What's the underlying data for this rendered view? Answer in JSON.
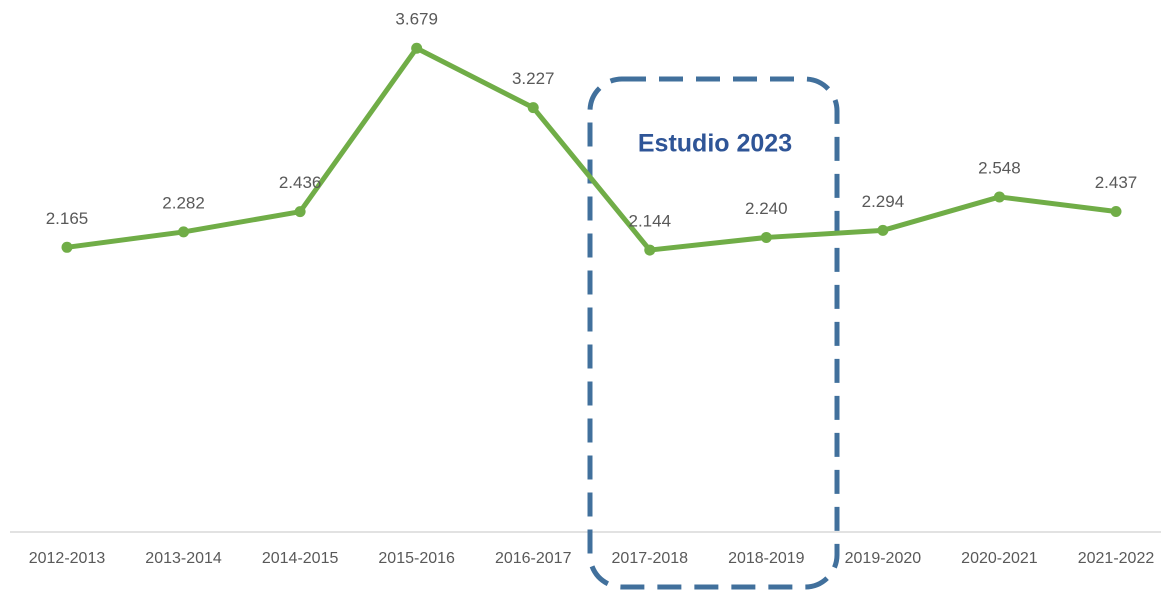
{
  "chart_data": {
    "type": "line",
    "annotation": "Estudio 2023",
    "categories": [
      "2012-2013",
      "2013-2014",
      "2014-2015",
      "2015-2016",
      "2016-2017",
      "2017-2018",
      "2018-2019",
      "2019-2020",
      "2020-2021",
      "2021-2022"
    ],
    "series": [
      {
        "color": "#70ad47",
        "values": [
          2.165,
          2.282,
          2.436,
          3.679,
          3.227,
          2.144,
          2.24,
          2.294,
          2.548,
          2.437
        ],
        "value_labels": [
          "2.165",
          "2.282",
          "2.436",
          "3.679",
          "3.227",
          "2.144",
          "2.240",
          "2.294",
          "2.548",
          "2.437"
        ]
      }
    ],
    "ylim": [
      0,
      4
    ]
  }
}
